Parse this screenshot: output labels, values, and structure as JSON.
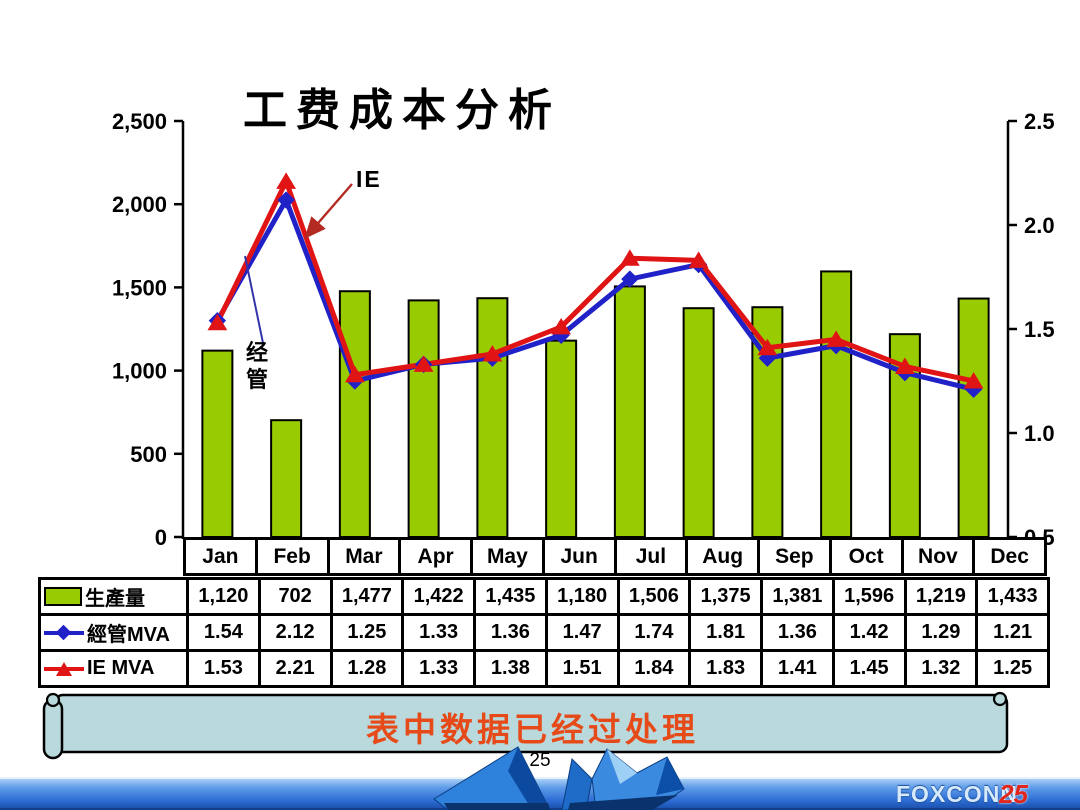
{
  "slide": {
    "title": "工费成本分析",
    "page_number": "25",
    "banner_text": "表中数据已经过处理",
    "footer_logo_text": "FOXCONN",
    "footer_page_number": "25"
  },
  "chart_data": {
    "type": "bar+line combo",
    "title": "工费成本分析",
    "categories": [
      "Jan",
      "Feb",
      "Mar",
      "Apr",
      "May",
      "Jun",
      "Jul",
      "Aug",
      "Sep",
      "Oct",
      "Nov",
      "Dec"
    ],
    "series": [
      {
        "name": "生產量",
        "type": "bar",
        "axis": "left",
        "color": "#99CC00",
        "values": [
          1120,
          702,
          1477,
          1422,
          1435,
          1180,
          1506,
          1375,
          1381,
          1596,
          1219,
          1433
        ]
      },
      {
        "name": "經管MVA",
        "type": "line",
        "marker": "diamond",
        "axis": "right",
        "color": "#2121C8",
        "values": [
          1.54,
          2.12,
          1.25,
          1.33,
          1.36,
          1.47,
          1.74,
          1.81,
          1.36,
          1.42,
          1.29,
          1.21
        ]
      },
      {
        "name": "IE MVA",
        "type": "line",
        "marker": "triangle",
        "axis": "right",
        "color": "#E01414",
        "values": [
          1.53,
          2.21,
          1.28,
          1.33,
          1.38,
          1.51,
          1.84,
          1.83,
          1.41,
          1.45,
          1.32,
          1.25
        ]
      }
    ],
    "left_axis": {
      "min": 0,
      "max": 2500,
      "step": 500,
      "tick_labels": [
        "0",
        "500",
        "1,000",
        "1,500",
        "2,000",
        "2,500"
      ]
    },
    "right_axis": {
      "min": 0.5,
      "max": 2.5,
      "step": 0.5,
      "tick_labels": [
        "0.5",
        "1.0",
        "1.5",
        "2.0",
        "2.5"
      ]
    },
    "grid": false,
    "legend_position": "table rows at left of data table",
    "annotations": {
      "ie_label": "IE",
      "jingguan_label": "经管"
    }
  },
  "table": {
    "rows": [
      {
        "label": "生產量",
        "legend": "bar-swatch",
        "values": [
          "1,120",
          "702",
          "1,477",
          "1,422",
          "1,435",
          "1,180",
          "1,506",
          "1,375",
          "1,381",
          "1,596",
          "1,219",
          "1,433"
        ]
      },
      {
        "label": "經管MVA",
        "legend": "blue-diamond-line",
        "values": [
          "1.54",
          "2.12",
          "1.25",
          "1.33",
          "1.36",
          "1.47",
          "1.74",
          "1.81",
          "1.36",
          "1.42",
          "1.29",
          "1.21"
        ]
      },
      {
        "label": "IE MVA",
        "legend": "red-triangle-line",
        "values": [
          "1.53",
          "2.21",
          "1.28",
          "1.33",
          "1.38",
          "1.51",
          "1.84",
          "1.83",
          "1.41",
          "1.45",
          "1.32",
          "1.25"
        ]
      }
    ]
  },
  "colors": {
    "bar_fill": "#99CC00",
    "line_blue": "#2121C8",
    "line_red": "#E01414",
    "banner_fill": "#B9D9DC",
    "banner_text": "#E64A19",
    "footer_blue": "#2F6FD6"
  }
}
